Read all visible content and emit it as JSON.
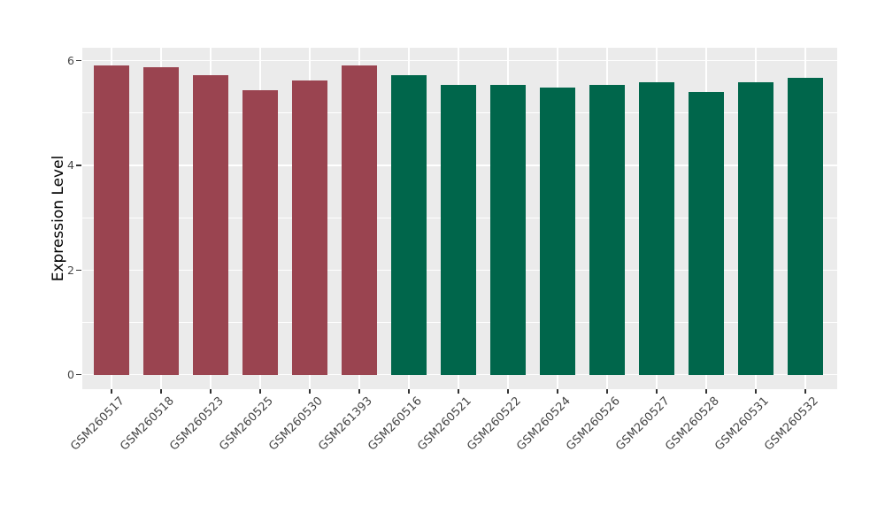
{
  "chart_data": {
    "type": "bar",
    "title": "",
    "xlabel": "",
    "ylabel": "Expression Level",
    "categories": [
      "GSM260517",
      "GSM260518",
      "GSM260523",
      "GSM260525",
      "GSM260530",
      "GSM261393",
      "GSM260516",
      "GSM260521",
      "GSM260522",
      "GSM260524",
      "GSM260526",
      "GSM260527",
      "GSM260528",
      "GSM260531",
      "GSM260532"
    ],
    "values": [
      5.91,
      5.87,
      5.73,
      5.43,
      5.63,
      5.91,
      5.72,
      5.54,
      5.54,
      5.49,
      5.53,
      5.59,
      5.4,
      5.58,
      5.67
    ],
    "groups": [
      "group1",
      "group1",
      "group1",
      "group1",
      "group1",
      "group1",
      "group2",
      "group2",
      "group2",
      "group2",
      "group2",
      "group2",
      "group2",
      "group2",
      "group2"
    ],
    "group_colors": {
      "group1": "#9A4450",
      "group2": "#00664B"
    },
    "yticks": [
      0,
      2,
      4,
      6
    ],
    "ytick_labels": [
      "0",
      "2",
      "4",
      "6"
    ],
    "minor_yticks": [
      1,
      3,
      5
    ],
    "ylim": [
      0,
      6.25
    ],
    "x_tick_rotation": 45,
    "grid": "on",
    "legend": "none",
    "colors": {
      "panel_background": "#EBEBEB",
      "gridline": "#FFFFFF",
      "tick_text": "#454545",
      "tick_mark": "#333333",
      "axis_title": "#000000",
      "figure_background": "#FFFFFF"
    }
  }
}
